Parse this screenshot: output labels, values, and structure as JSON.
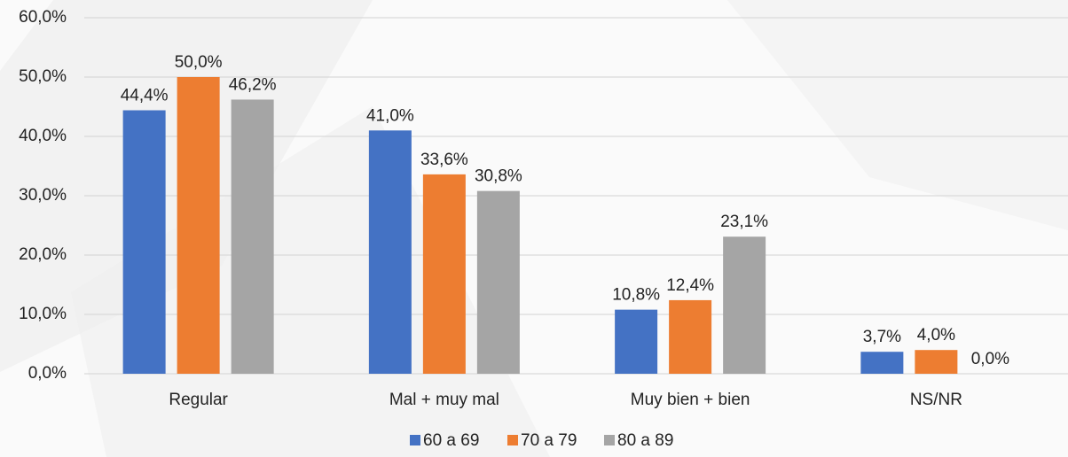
{
  "chart_data": {
    "type": "bar",
    "categories": [
      "Regular",
      "Mal + muy mal",
      "Muy bien + bien",
      "NS/NR"
    ],
    "series": [
      {
        "name": "60 a 69",
        "color": "#4472c4",
        "values": [
          44.4,
          41.0,
          10.8,
          3.7
        ],
        "value_labels": [
          "44,4%",
          "41,0%",
          "10,8%",
          "3,7%"
        ]
      },
      {
        "name": "70 a 79",
        "color": "#ed7d31",
        "values": [
          50.0,
          33.6,
          12.4,
          4.0
        ],
        "value_labels": [
          "50,0%",
          "33,6%",
          "12,4%",
          "4,0%"
        ]
      },
      {
        "name": "80 a 89",
        "color": "#a5a5a5",
        "values": [
          46.2,
          30.8,
          23.1,
          0.0
        ],
        "value_labels": [
          "46,2%",
          "30,8%",
          "23,1%",
          "0,0%"
        ]
      }
    ],
    "ylim": [
      0,
      60
    ],
    "yticks": [
      {
        "value": 0,
        "label": "0,0%"
      },
      {
        "value": 10,
        "label": "10,0%"
      },
      {
        "value": 20,
        "label": "20,0%"
      },
      {
        "value": 30,
        "label": "30,0%"
      },
      {
        "value": 40,
        "label": "40,0%"
      },
      {
        "value": 50,
        "label": "50,0%"
      },
      {
        "value": 60,
        "label": "60,0%"
      }
    ],
    "grid": true,
    "legend": "bottom"
  }
}
